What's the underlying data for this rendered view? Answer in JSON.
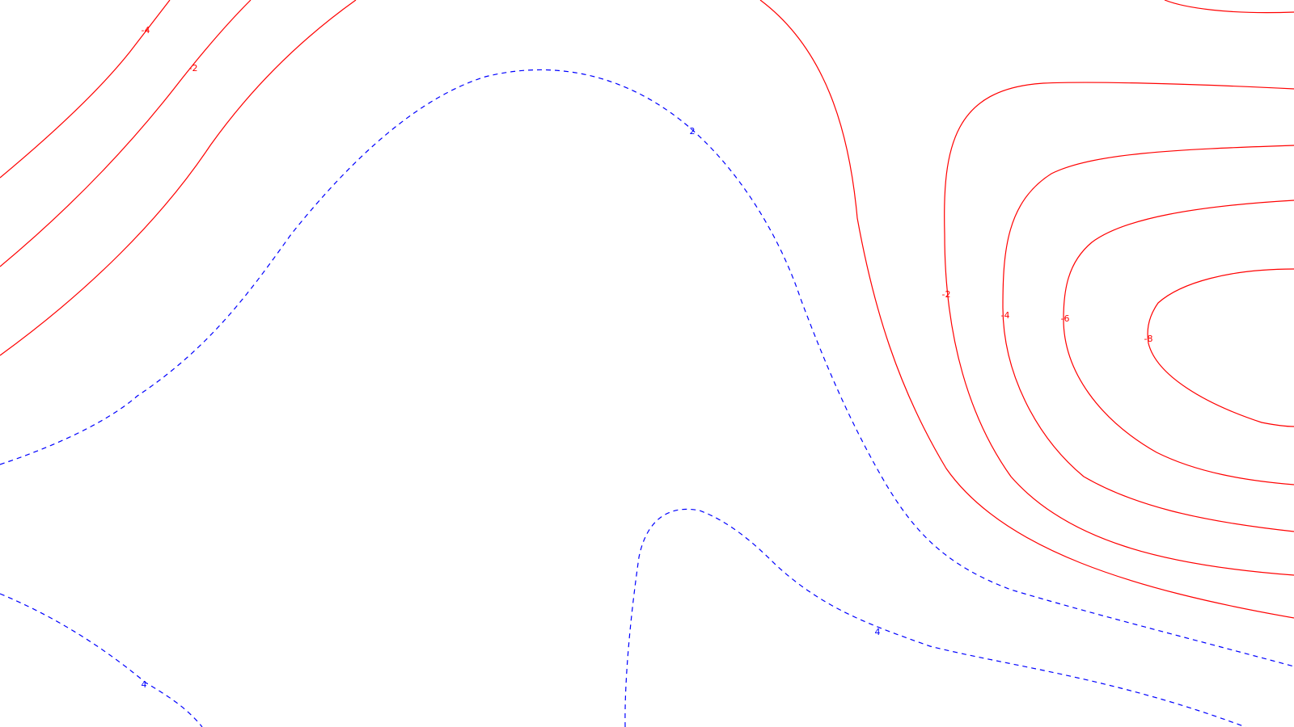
{
  "colors": {
    "negative": "#ff0000",
    "positive": "#0000ff",
    "background": "#ffffff"
  },
  "contours": [
    {
      "id": "neg-nw-outer",
      "value": -4,
      "label": "-4",
      "sign": "negative"
    },
    {
      "id": "neg-nw-middle",
      "value": -2,
      "label": "-2",
      "sign": "negative"
    },
    {
      "id": "neg-nw-inner",
      "sign": "negative"
    },
    {
      "id": "neg-center",
      "sign": "negative"
    },
    {
      "id": "neg-e-2",
      "value": -2,
      "label": "-2",
      "sign": "negative"
    },
    {
      "id": "neg-e-4",
      "value": -4,
      "label": "-4",
      "sign": "negative"
    },
    {
      "id": "neg-e-6",
      "value": -6,
      "label": "-6",
      "sign": "negative"
    },
    {
      "id": "neg-e-8",
      "value": -8,
      "label": "-8",
      "sign": "negative"
    },
    {
      "id": "neg-ne-corner",
      "sign": "negative"
    },
    {
      "id": "pos-2",
      "value": 2,
      "label": "2",
      "sign": "positive"
    },
    {
      "id": "pos-4-south",
      "value": 4,
      "label": "4",
      "sign": "positive"
    },
    {
      "id": "pos-4-sw",
      "value": 4,
      "label": "4",
      "sign": "positive"
    }
  ]
}
